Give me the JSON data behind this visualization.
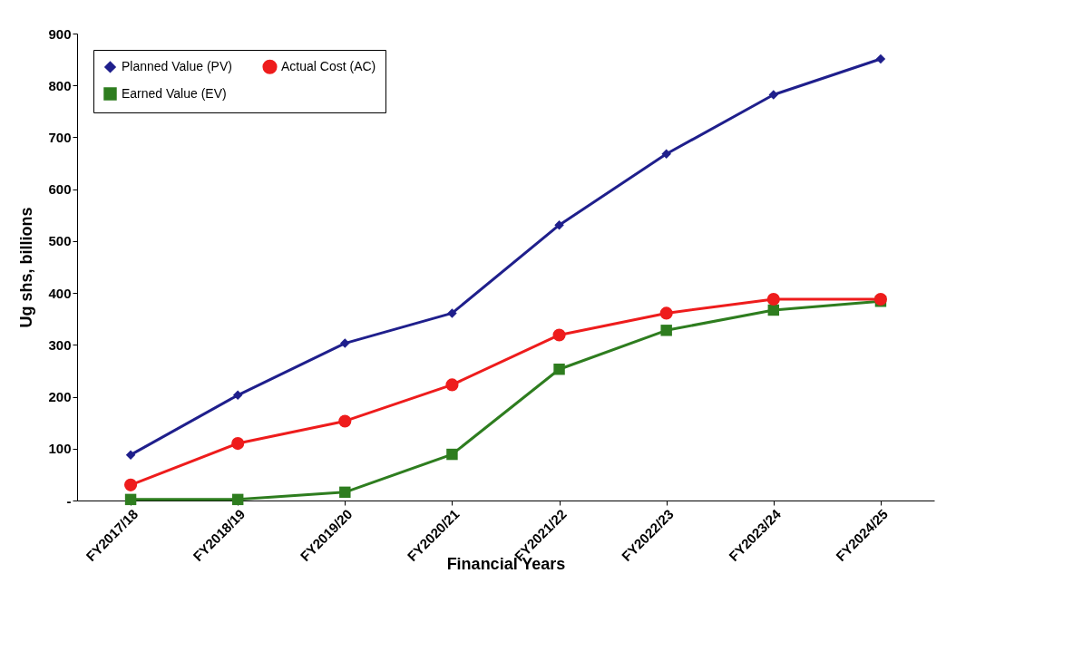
{
  "chart_data": {
    "type": "line",
    "xlabel": "Financial Years",
    "ylabel": "Ug shs, billions",
    "categories": [
      "FY2017/18",
      "FY2018/19",
      "FY2019/20",
      "FY2020/21",
      "FY2021/22",
      "FY2022/23",
      "FY2023/24",
      "FY2024/25"
    ],
    "series": [
      {
        "name": "Planned Value (PV)",
        "color": "#1f1f8c",
        "marker": "diamond",
        "values": [
          88,
          203,
          303,
          361,
          531,
          668,
          782,
          851
        ]
      },
      {
        "name": "Earned Value (EV)",
        "color": "#2e7d1f",
        "marker": "square",
        "values": [
          2,
          2,
          16,
          89,
          253,
          328,
          367,
          384
        ]
      },
      {
        "name": "Actual Cost (AC)",
        "color": "#ee1c1c",
        "marker": "circle",
        "values": [
          30,
          110,
          153,
          223,
          319,
          361,
          388,
          388
        ]
      }
    ],
    "ylim": [
      0,
      900
    ],
    "yticks": [
      {
        "value": 0,
        "label": "-"
      },
      100,
      200,
      300,
      400,
      500,
      600,
      700,
      800,
      900
    ],
    "grid": false,
    "legend": "top left",
    "line_style": "solid"
  }
}
